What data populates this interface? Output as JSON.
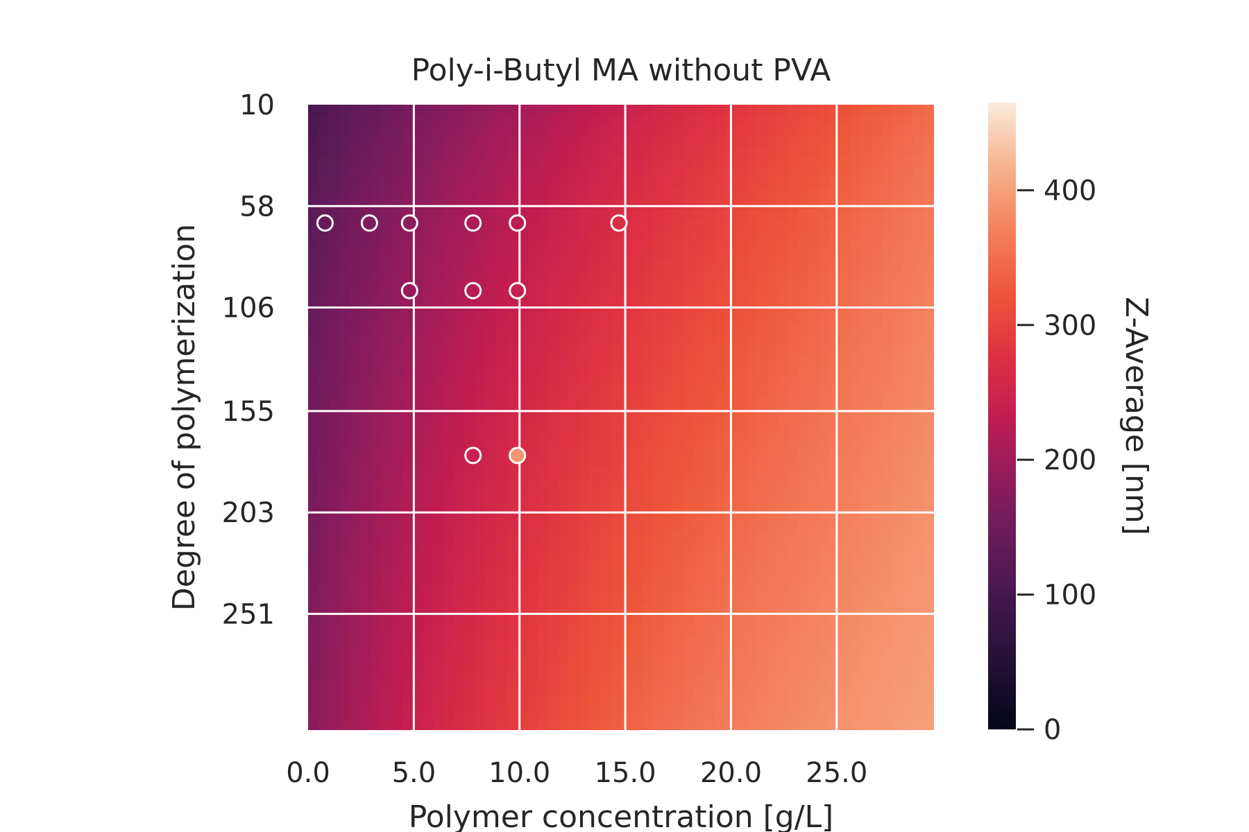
{
  "chart_data": {
    "type": "heatmap",
    "title": "Poly-i-Butyl MA without PVA",
    "xlabel": "Polymer concentration [g/L]",
    "ylabel": "Degree of polymerization",
    "xlim": [
      0,
      29.6
    ],
    "ylim": [
      10,
      306
    ],
    "x_ticks": [
      "0.0",
      "5.0",
      "10.0",
      "15.0",
      "20.0",
      "25.0"
    ],
    "y_ticks": [
      "10",
      "58",
      "106",
      "155",
      "203",
      "251"
    ],
    "grid": true,
    "colormap": "rocket",
    "colorbar": {
      "label": "Z-Average [nm]",
      "range": [
        0,
        465
      ],
      "ticks": [
        "0",
        "100",
        "200",
        "300",
        "400"
      ]
    },
    "surface_model": {
      "description_values_nm_at_corners": {
        "x0_y10": 95,
        "x30_y10": 345,
        "x0_y306": 175,
        "x30_y306": 400
      }
    },
    "points": [
      {
        "x": 0.8,
        "y": 66,
        "z": null
      },
      {
        "x": 2.9,
        "y": 66,
        "z": null
      },
      {
        "x": 4.8,
        "y": 66,
        "z": null
      },
      {
        "x": 7.8,
        "y": 66,
        "z": null
      },
      {
        "x": 9.9,
        "y": 66,
        "z": null
      },
      {
        "x": 14.7,
        "y": 66,
        "z": null
      },
      {
        "x": 4.8,
        "y": 98,
        "z": null
      },
      {
        "x": 7.8,
        "y": 98,
        "z": null
      },
      {
        "x": 9.9,
        "y": 98,
        "z": null
      },
      {
        "x": 7.8,
        "y": 176,
        "z": null
      },
      {
        "x": 9.9,
        "y": 176,
        "z": 390
      }
    ]
  }
}
